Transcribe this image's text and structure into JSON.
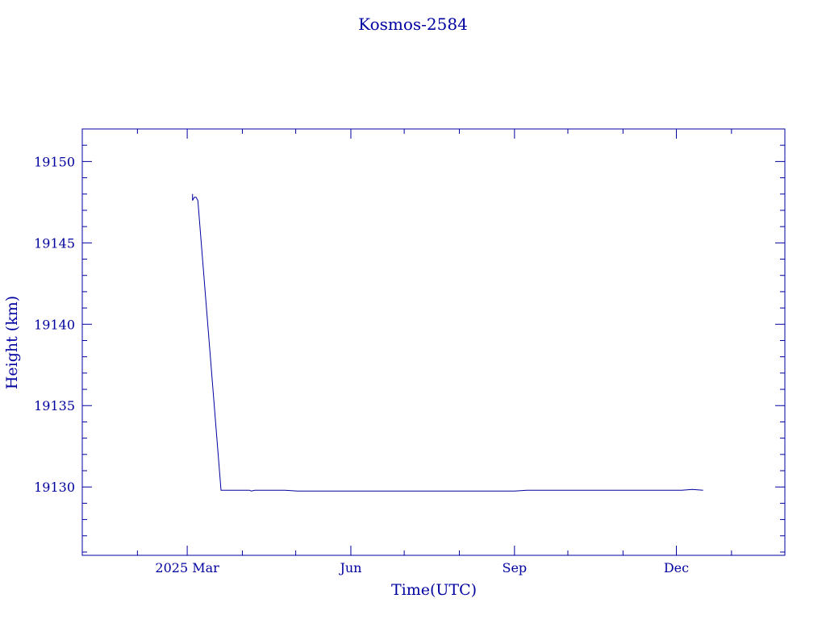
{
  "chart_data": {
    "type": "line",
    "title": "Kosmos-2584",
    "xlabel": "Time(UTC)",
    "ylabel": "Height (km)",
    "color": "#0000a0",
    "grid": false,
    "xlim": [
      "2025-01-01",
      "2026-01-31"
    ],
    "ylim": [
      19125.8,
      19152
    ],
    "x_ticks": [
      {
        "date": "2025-03-01",
        "label": "2025 Mar"
      },
      {
        "date": "2025-06-01",
        "label": "Jun"
      },
      {
        "date": "2025-09-01",
        "label": "Sep"
      },
      {
        "date": "2025-12-01",
        "label": "Dec"
      }
    ],
    "y_ticks": [
      19130,
      19135,
      19140,
      19145,
      19150
    ],
    "x": [
      "2025-03-04",
      "2025-03-04",
      "2025-03-05",
      "2025-03-06",
      "2025-03-07",
      "2025-03-20",
      "2025-03-21",
      "2025-04-05",
      "2025-04-06",
      "2025-04-08",
      "2025-04-25",
      "2025-05-02",
      "2025-09-01",
      "2025-09-08",
      "2025-12-04",
      "2025-12-10",
      "2025-12-16"
    ],
    "y": [
      19148.0,
      19147.6,
      19147.8,
      19147.8,
      19147.6,
      19129.8,
      19129.8,
      19129.8,
      19129.75,
      19129.8,
      19129.8,
      19129.75,
      19129.75,
      19129.8,
      19129.8,
      19129.85,
      19129.8
    ]
  }
}
